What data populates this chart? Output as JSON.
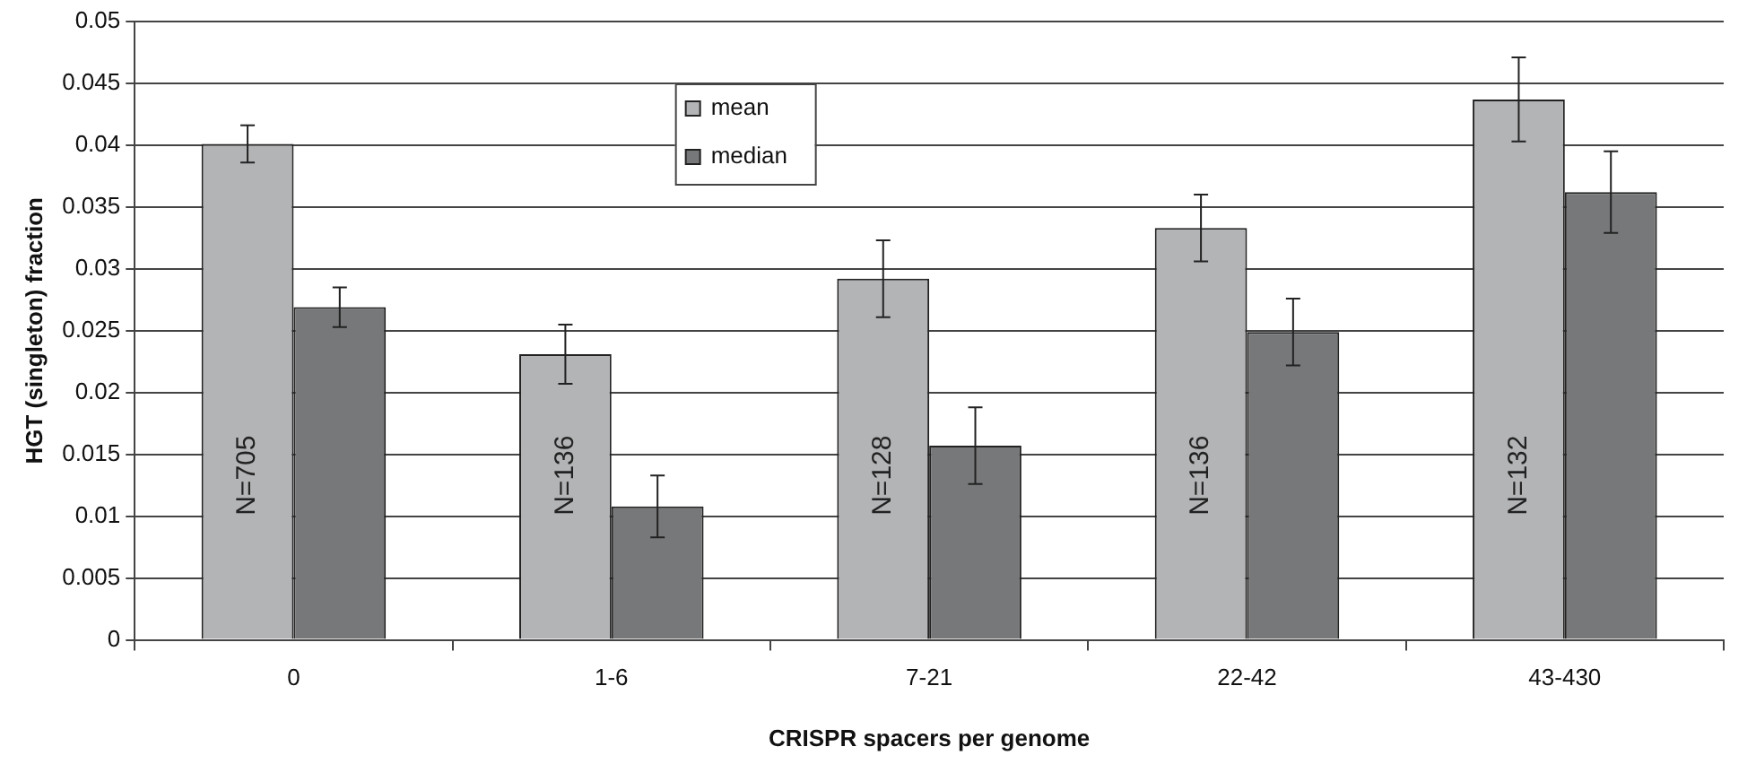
{
  "chart_data": {
    "type": "bar",
    "xlabel": "CRISPR spacers per genome",
    "ylabel": "HGT (singleton) fraction",
    "categories": [
      "0",
      "1-6",
      "7-21",
      "22-42",
      "43-430"
    ],
    "series": [
      {
        "name": "mean",
        "color": "#b3b4b6",
        "values": [
          0.0401,
          0.0231,
          0.0292,
          0.0333,
          0.0437
        ],
        "errors": [
          0.0015,
          0.0024,
          0.0031,
          0.0027,
          0.0034
        ]
      },
      {
        "name": "median",
        "color": "#77787a",
        "values": [
          0.0269,
          0.0108,
          0.0157,
          0.0249,
          0.0362
        ],
        "errors": [
          0.0016,
          0.0025,
          0.0031,
          0.0027,
          0.0033
        ]
      }
    ],
    "ylim": [
      0,
      0.05
    ],
    "yticks": [
      0,
      0.005,
      0.01,
      0.015,
      0.02,
      0.025,
      0.03,
      0.035,
      0.04,
      0.045,
      0.05
    ],
    "grid": "y",
    "legend": "top",
    "annotations": [
      {
        "text": "N=705",
        "x": "0",
        "y": 0.0133
      },
      {
        "text": "N=136",
        "x": "1-6",
        "y": 0.0133
      },
      {
        "text": "N=128",
        "x": "7-21",
        "y": 0.0133
      },
      {
        "text": "N=136",
        "x": "22-42",
        "y": 0.0133
      },
      {
        "text": "N=132",
        "x": "43-430",
        "y": 0.0133
      }
    ]
  }
}
